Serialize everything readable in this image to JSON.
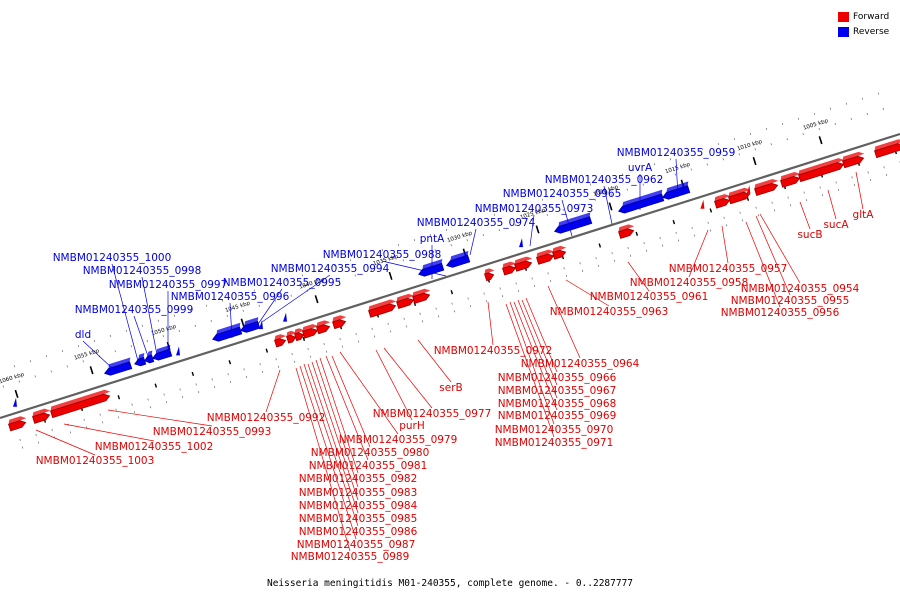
{
  "caption": "Neisseria meningitidis M01-240355, complete genome. - 0..2287777",
  "legend": [
    {
      "label": "Forward",
      "color": "#ee0000"
    },
    {
      "label": "Reverse",
      "color": "#0000ee"
    }
  ],
  "colors": {
    "forward": "#ee0000",
    "reverse": "#0000ee",
    "backbone": "#606060"
  },
  "scale_ticks": [
    "1005 kbp",
    "1010 kbp",
    "1015 kbp",
    "1020 kbp",
    "1025 kbp",
    "1030 kbp",
    "1035 kbp",
    "1040 kbp",
    "1045 kbp",
    "1050 kbp",
    "1055 kbp",
    "1060 kbp"
  ],
  "forward_genes": [
    "gltA",
    "sucA",
    "sucB",
    "NMBM01240355_0954",
    "NMBM01240355_0955",
    "NMBM01240355_0956",
    "NMBM01240355_0957",
    "NMBM01240355_0958",
    "NMBM01240355_0961",
    "NMBM01240355_0963",
    "NMBM01240355_0964",
    "NMBM01240355_0972",
    "NMBM01240355_0966",
    "NMBM01240355_0967",
    "NMBM01240355_0968",
    "NMBM01240355_0969",
    "NMBM01240355_0970",
    "NMBM01240355_0971",
    "serB",
    "NMBM01240355_0977",
    "purH",
    "NMBM01240355_0979",
    "NMBM01240355_0980",
    "NMBM01240355_0981",
    "NMBM01240355_0982",
    "NMBM01240355_0983",
    "NMBM01240355_0984",
    "NMBM01240355_0985",
    "NMBM01240355_0986",
    "NMBM01240355_0987",
    "NMBM01240355_0989",
    "NMBM01240355_0992",
    "NMBM01240355_0993",
    "NMBM01240355_1002",
    "NMBM01240355_1003"
  ],
  "reverse_genes": [
    "NMBM01240355_0959",
    "uvrA",
    "NMBM01240355_0962",
    "NMBM01240355_0965",
    "NMBM01240355_0973",
    "NMBM01240355_0974",
    "pntA",
    "NMBM01240355_0988",
    "NMBM01240355_0994",
    "NMBM01240355_0995",
    "NMBM01240355_0996",
    "NMBM01240355_0997",
    "NMBM01240355_0998",
    "NMBM01240355_1000",
    "NMBM01240355_0999",
    "dld"
  ]
}
